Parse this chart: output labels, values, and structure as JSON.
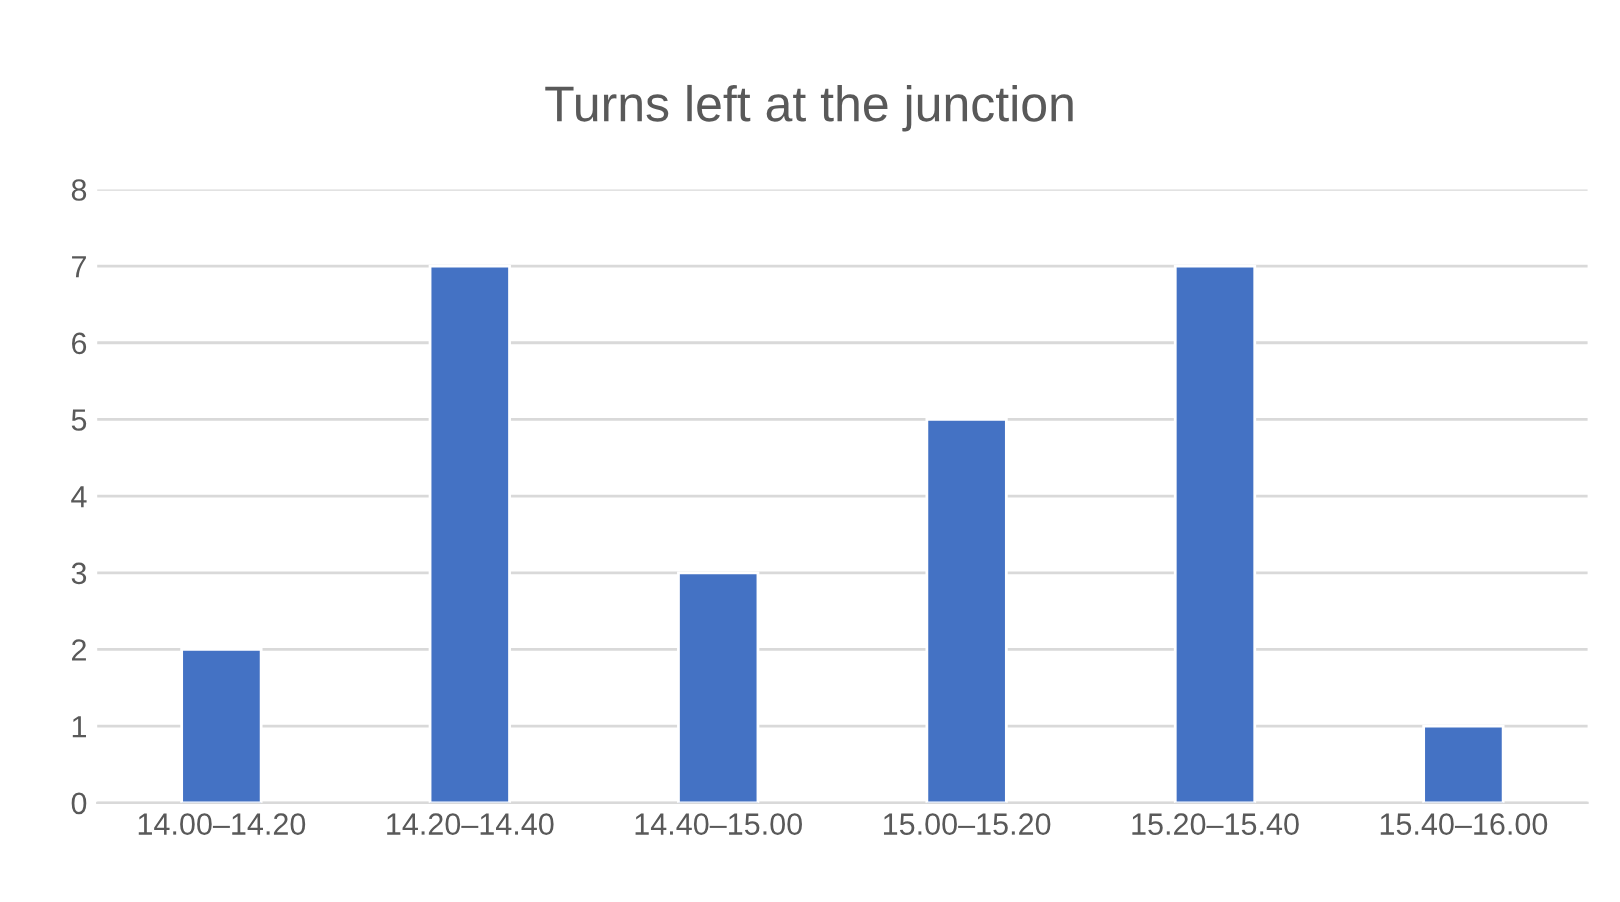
{
  "chart_data": {
    "type": "bar",
    "title": "Turns left at the junction",
    "categories": [
      "14.00–14.20",
      "14.20–14.40",
      "14.40–15.00",
      "15.00–15.20",
      "15.20–15.40",
      "15.40–16.00"
    ],
    "values": [
      2,
      7,
      3,
      5,
      7,
      1
    ],
    "color": "#4472c4",
    "ylim": [
      0,
      8
    ],
    "yticks": [
      0,
      1,
      2,
      3,
      4,
      5,
      6,
      7,
      8
    ],
    "grid": "y",
    "legend": false
  }
}
